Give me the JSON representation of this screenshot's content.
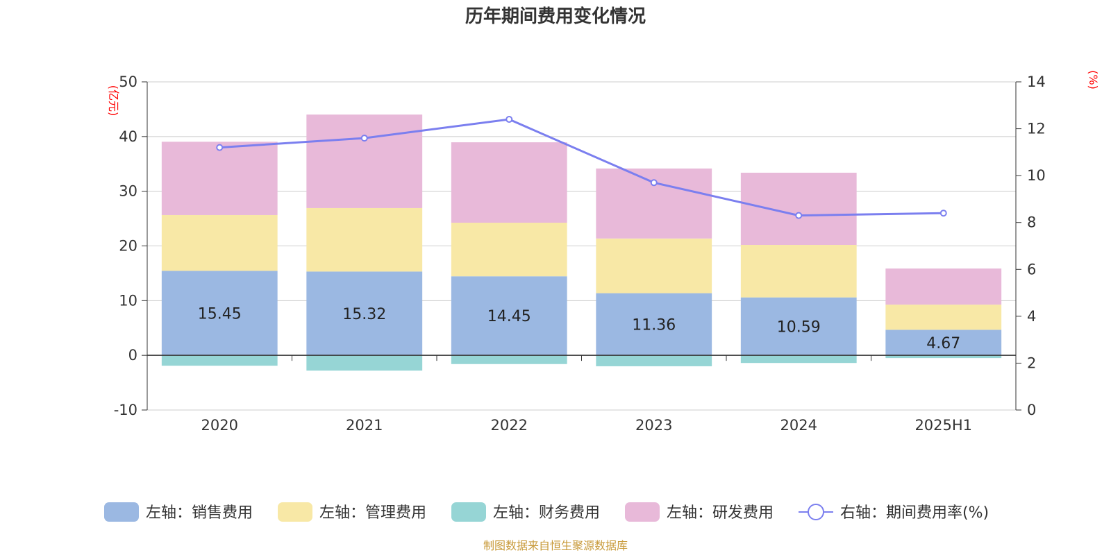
{
  "chart_data": {
    "type": "bar",
    "title": "历年期间费用变化情况",
    "categories": [
      "2020",
      "2021",
      "2022",
      "2023",
      "2024",
      "2025H1"
    ],
    "left_axis": {
      "unit": "(亿元)",
      "ylim": [
        -10,
        50
      ],
      "ticks": [
        50,
        40,
        30,
        20,
        10,
        0,
        -10
      ]
    },
    "right_axis": {
      "unit": "(%)",
      "ylim": [
        0,
        14
      ],
      "ticks": [
        14,
        12,
        10,
        8,
        6,
        4,
        2,
        0
      ]
    },
    "grid": true,
    "legend_position": "bottom",
    "series": [
      {
        "name": "左轴：销售费用",
        "type": "bar",
        "stack": "left",
        "axis": "left",
        "color": "#9bb8e2",
        "values": [
          15.45,
          15.32,
          14.45,
          11.36,
          10.59,
          4.67
        ],
        "labels": [
          "15.45",
          "15.32",
          "14.45",
          "11.36",
          "10.59",
          "4.67"
        ]
      },
      {
        "name": "左轴：管理费用",
        "type": "bar",
        "stack": "left",
        "axis": "left",
        "color": "#f8e8a6",
        "values": [
          10.2,
          11.6,
          9.8,
          10.0,
          9.6,
          4.6
        ]
      },
      {
        "name": "左轴：财务费用",
        "type": "bar",
        "stack": "left",
        "axis": "left",
        "color": "#96d5d5",
        "values": [
          -1.9,
          -2.8,
          -1.6,
          -2.0,
          -1.4,
          -0.5
        ]
      },
      {
        "name": "左轴：研发费用",
        "type": "bar",
        "stack": "left",
        "axis": "left",
        "color": "#e8b9d9",
        "values": [
          13.4,
          17.1,
          14.7,
          12.8,
          13.2,
          6.6
        ]
      },
      {
        "name": "右轴：期间费用率(%)",
        "type": "line",
        "axis": "right",
        "color": "#7b7fef",
        "values": [
          11.2,
          11.6,
          12.4,
          9.7,
          8.3,
          8.4
        ]
      }
    ],
    "source": "制图数据来自恒生聚源数据库"
  }
}
